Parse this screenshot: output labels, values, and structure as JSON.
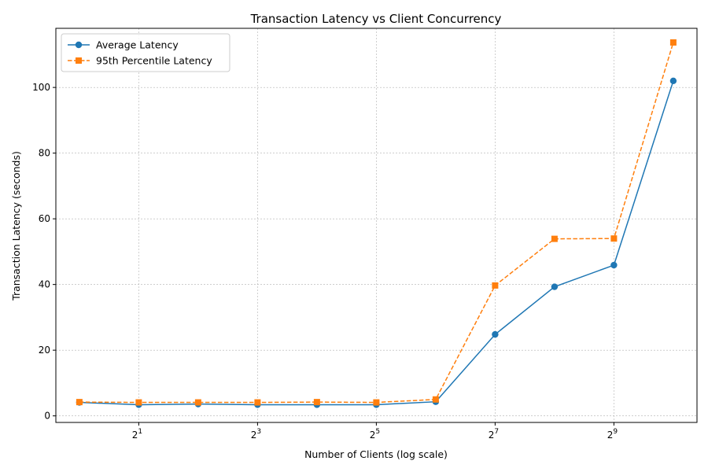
{
  "chart_data": {
    "type": "line",
    "title": "Transaction Latency vs Client Concurrency",
    "xlabel": "Number of Clients (log scale)",
    "ylabel": "Transaction Latency (seconds)",
    "x_scale": "log2",
    "x": [
      1,
      2,
      4,
      8,
      16,
      32,
      64,
      128,
      256,
      512,
      1024
    ],
    "xlim": [
      0.76,
      1350
    ],
    "ylim": [
      -2,
      118
    ],
    "x_ticks": [
      {
        "value": 2,
        "base": "2",
        "exp": "1"
      },
      {
        "value": 8,
        "base": "2",
        "exp": "3"
      },
      {
        "value": 32,
        "base": "2",
        "exp": "5"
      },
      {
        "value": 128,
        "base": "2",
        "exp": "7"
      },
      {
        "value": 512,
        "base": "2",
        "exp": "9"
      }
    ],
    "y_ticks": [
      0,
      20,
      40,
      60,
      80,
      100
    ],
    "grid": true,
    "legend_position": "top-left",
    "series": [
      {
        "name": "Average Latency",
        "color": "#1f77b4",
        "marker": "circle",
        "linestyle": "solid",
        "values": [
          4.1,
          3.4,
          3.6,
          3.4,
          3.4,
          3.4,
          4.3,
          24.8,
          39.3,
          45.9,
          102.0
        ]
      },
      {
        "name": "95th Percentile Latency",
        "color": "#ff7f0e",
        "marker": "square",
        "linestyle": "dashed",
        "values": [
          4.2,
          4.1,
          4.1,
          4.1,
          4.2,
          4.1,
          5.0,
          39.7,
          53.9,
          54.0,
          113.7
        ]
      }
    ]
  }
}
